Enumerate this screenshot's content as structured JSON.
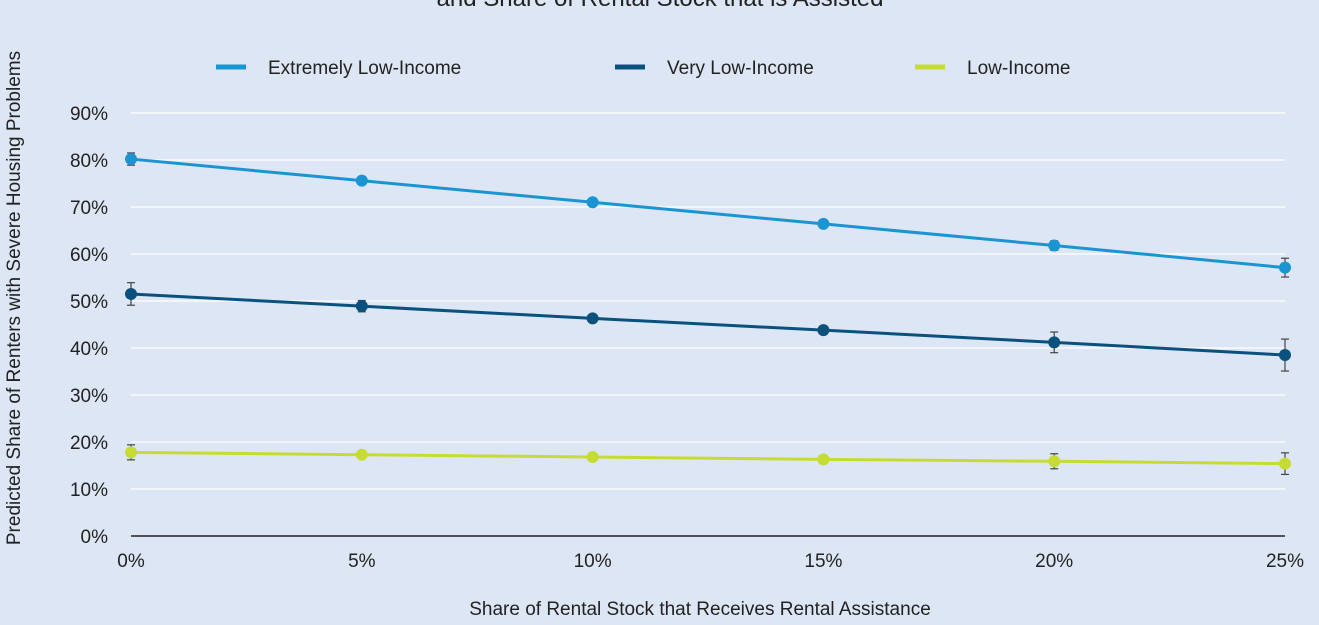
{
  "chart_data": {
    "type": "line",
    "title": "and Share of Rental Stock that is Assisted",
    "xlabel": "Share of Rental Stock that Receives Rental Assistance",
    "ylabel": "Predicted Share of Renters with Severe Housing Problems",
    "x": [
      0,
      5,
      10,
      15,
      20,
      25
    ],
    "x_tick_labels": [
      "0%",
      "5%",
      "10%",
      "15%",
      "20%",
      "25%"
    ],
    "xlim": [
      0,
      25
    ],
    "ylim": [
      0,
      90
    ],
    "y_ticks": [
      0,
      10,
      20,
      30,
      40,
      50,
      60,
      70,
      80,
      90
    ],
    "y_tick_labels": [
      "0%",
      "10%",
      "20%",
      "30%",
      "40%",
      "50%",
      "60%",
      "70%",
      "80%",
      "90%"
    ],
    "grid": true,
    "legend_position": "top",
    "series": [
      {
        "name": "Extremely Low-Income",
        "color": "#1b95d2",
        "values": [
          80.2,
          75.6,
          71.0,
          66.4,
          61.8,
          57.1
        ],
        "error": [
          1.3,
          0.7,
          0.5,
          0.6,
          1.0,
          2.0
        ]
      },
      {
        "name": "Very Low-Income",
        "color": "#0a517e",
        "values": [
          51.5,
          48.9,
          46.3,
          43.8,
          41.2,
          38.5
        ],
        "error": [
          2.4,
          1.2,
          0.7,
          0.8,
          2.2,
          3.4
        ]
      },
      {
        "name": "Low-Income",
        "color": "#c6dc35",
        "values": [
          17.8,
          17.3,
          16.8,
          16.3,
          15.9,
          15.4
        ],
        "error": [
          1.6,
          0.6,
          0.5,
          0.6,
          1.6,
          2.3
        ]
      }
    ]
  }
}
